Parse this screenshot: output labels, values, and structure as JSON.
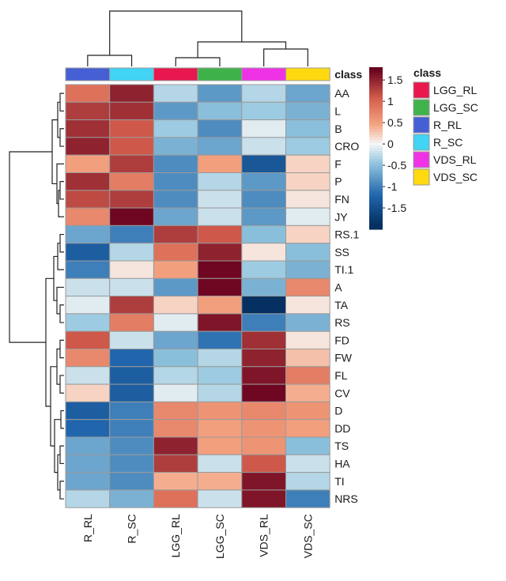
{
  "chart_data": {
    "type": "heatmap",
    "title": "",
    "columns": [
      "R_RL",
      "R_SC",
      "LGG_RL",
      "LGG_SC",
      "VDS_RL",
      "VDS_SC"
    ],
    "column_classes": [
      "R_RL",
      "R_SC",
      "LGG_RL",
      "LGG_SC",
      "VDS_RL",
      "VDS_SC"
    ],
    "class_header": "class",
    "rows": [
      "AA",
      "L",
      "B",
      "CRO",
      "F",
      "P",
      "FN",
      "JY",
      "RS.1",
      "SS",
      "TI.1",
      "A",
      "TA",
      "RS",
      "FD",
      "FW",
      "FL",
      "CV",
      "D",
      "DD",
      "TS",
      "HA",
      "TI",
      "NRS"
    ],
    "values": [
      [
        0.9,
        1.5,
        -0.3,
        -0.8,
        -0.3,
        -0.7
      ],
      [
        1.3,
        1.4,
        -0.8,
        -0.5,
        -0.4,
        -0.6
      ],
      [
        1.4,
        1.1,
        -0.4,
        -0.9,
        -0.1,
        -0.5
      ],
      [
        1.5,
        1.1,
        -0.6,
        -0.7,
        -0.2,
        -0.4
      ],
      [
        0.5,
        1.3,
        -0.9,
        0.5,
        -1.4,
        0.2
      ],
      [
        1.4,
        0.8,
        -0.9,
        -0.3,
        -0.8,
        0.2
      ],
      [
        1.2,
        1.3,
        -0.9,
        -0.2,
        -0.9,
        0.1
      ],
      [
        0.7,
        1.7,
        -0.7,
        -0.2,
        -0.8,
        -0.1
      ],
      [
        -0.7,
        -1.0,
        1.3,
        1.1,
        -0.5,
        0.2
      ],
      [
        -1.3,
        -0.3,
        0.9,
        1.5,
        0.1,
        -0.5
      ],
      [
        -1.0,
        0.1,
        0.5,
        1.7,
        -0.4,
        -0.6
      ],
      [
        -0.2,
        -0.2,
        -0.8,
        1.7,
        -0.6,
        0.7
      ],
      [
        -0.1,
        1.3,
        0.2,
        0.5,
        -1.9,
        0.1
      ],
      [
        -0.4,
        0.8,
        -0.1,
        1.6,
        -1.0,
        -0.6
      ],
      [
        1.1,
        -0.2,
        -0.7,
        -1.1,
        1.4,
        0.1
      ],
      [
        0.7,
        -1.2,
        -0.5,
        -0.3,
        1.5,
        0.3
      ],
      [
        -0.2,
        -1.3,
        -0.3,
        -0.4,
        1.6,
        0.8
      ],
      [
        0.2,
        -1.3,
        -0.1,
        -0.3,
        1.7,
        0.4
      ],
      [
        -1.3,
        -1.0,
        0.7,
        0.6,
        0.7,
        0.6
      ],
      [
        -1.2,
        -1.0,
        0.7,
        0.5,
        0.6,
        0.5
      ],
      [
        -0.7,
        -0.9,
        1.5,
        0.5,
        0.6,
        -0.5
      ],
      [
        -0.7,
        -0.9,
        1.3,
        -0.2,
        1.1,
        -0.2
      ],
      [
        -0.7,
        -0.9,
        0.4,
        0.4,
        1.6,
        -0.3
      ],
      [
        -0.3,
        -0.6,
        0.9,
        -0.2,
        1.6,
        -1.0
      ]
    ],
    "colorbar": {
      "ticks": [
        "1.5",
        "1",
        "0.5",
        "0",
        "-0.5",
        "-1",
        "-1.5"
      ],
      "range": [
        -2,
        1.8
      ]
    },
    "legend": {
      "title": "class",
      "position": "right",
      "items": [
        {
          "label": "LGG_RL",
          "color": "#e8174e"
        },
        {
          "label": "LGG_SC",
          "color": "#3fb34a"
        },
        {
          "label": "R_RL",
          "color": "#4560d4"
        },
        {
          "label": "R_SC",
          "color": "#42d4f4"
        },
        {
          "label": "VDS_RL",
          "color": "#f032e6"
        },
        {
          "label": "VDS_SC",
          "color": "#ffd90f"
        }
      ]
    },
    "colors": {
      "low": "#053061",
      "mid_low": "#2166ac",
      "mid_low2": "#92c5de",
      "mid": "#f7f7f7",
      "mid_high2": "#f4a582",
      "mid_high": "#d6604d",
      "high": "#67001f"
    }
  }
}
